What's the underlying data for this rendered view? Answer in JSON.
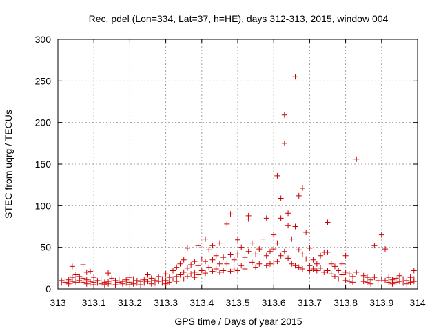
{
  "chart_data": {
    "type": "scatter",
    "title": "Rec. pdel (Lon=334, Lat=37, h=HE), days 312-313, 2015, window 004",
    "xlabel": "GPS time / Days of year 2015",
    "ylabel": "STEC from uqrg / TECUs",
    "xlim": [
      313,
      314
    ],
    "ylim": [
      0,
      300
    ],
    "x_ticks": [
      313,
      313.1,
      313.2,
      313.3,
      313.4,
      313.5,
      313.6,
      313.7,
      313.8,
      313.9,
      314
    ],
    "x_tick_labels": [
      "313",
      "313.1",
      "313.2",
      "313.3",
      "313.4",
      "313.5",
      "313.6",
      "313.7",
      "313.8",
      "313.9",
      "314"
    ],
    "y_ticks": [
      0,
      50,
      100,
      150,
      200,
      250,
      300
    ],
    "y_tick_labels": [
      "0",
      "50",
      "100",
      "150",
      "200",
      "250",
      "300"
    ],
    "grid": true,
    "marker": "+",
    "color": "#cc0000",
    "series": [
      {
        "name": "STEC",
        "points": [
          [
            313.01,
            10
          ],
          [
            313.01,
            7
          ],
          [
            313.02,
            12
          ],
          [
            313.02,
            8
          ],
          [
            313.03,
            11
          ],
          [
            313.03,
            6
          ],
          [
            313.04,
            27
          ],
          [
            313.04,
            14
          ],
          [
            313.04,
            9
          ],
          [
            313.05,
            17
          ],
          [
            313.05,
            12
          ],
          [
            313.05,
            8
          ],
          [
            313.06,
            15
          ],
          [
            313.06,
            10
          ],
          [
            313.07,
            29
          ],
          [
            313.07,
            13
          ],
          [
            313.07,
            8
          ],
          [
            313.08,
            20
          ],
          [
            313.08,
            11
          ],
          [
            313.08,
            6
          ],
          [
            313.09,
            21
          ],
          [
            313.09,
            9
          ],
          [
            313.09,
            7
          ],
          [
            313.1,
            14
          ],
          [
            313.1,
            8
          ],
          [
            313.1,
            5
          ],
          [
            313.11,
            10
          ],
          [
            313.11,
            7
          ],
          [
            313.12,
            12
          ],
          [
            313.12,
            6
          ],
          [
            313.13,
            8
          ],
          [
            313.13,
            5
          ],
          [
            313.14,
            19
          ],
          [
            313.14,
            9
          ],
          [
            313.14,
            6
          ],
          [
            313.15,
            13
          ],
          [
            313.15,
            7
          ],
          [
            313.16,
            10
          ],
          [
            313.16,
            5
          ],
          [
            313.17,
            12
          ],
          [
            313.17,
            8
          ],
          [
            313.18,
            9
          ],
          [
            313.18,
            6
          ],
          [
            313.19,
            11
          ],
          [
            313.19,
            7
          ],
          [
            313.2,
            14
          ],
          [
            313.2,
            8
          ],
          [
            313.2,
            5
          ],
          [
            313.21,
            12
          ],
          [
            313.21,
            6
          ],
          [
            313.22,
            10
          ],
          [
            313.22,
            7
          ],
          [
            313.23,
            9
          ],
          [
            313.23,
            5
          ],
          [
            313.24,
            11
          ],
          [
            313.24,
            7
          ],
          [
            313.25,
            17
          ],
          [
            313.25,
            9
          ],
          [
            313.26,
            13
          ],
          [
            313.26,
            6
          ],
          [
            313.27,
            10
          ],
          [
            313.27,
            7
          ],
          [
            313.28,
            15
          ],
          [
            313.28,
            9
          ],
          [
            313.29,
            12
          ],
          [
            313.29,
            7
          ],
          [
            313.3,
            18
          ],
          [
            313.3,
            10
          ],
          [
            313.3,
            6
          ],
          [
            313.31,
            14
          ],
          [
            313.31,
            8
          ],
          [
            313.32,
            22
          ],
          [
            313.32,
            12
          ],
          [
            313.33,
            26
          ],
          [
            313.33,
            15
          ],
          [
            313.33,
            9
          ],
          [
            313.34,
            30
          ],
          [
            313.34,
            17
          ],
          [
            313.35,
            35
          ],
          [
            313.35,
            20
          ],
          [
            313.35,
            12
          ],
          [
            313.36,
            49
          ],
          [
            313.36,
            25
          ],
          [
            313.36,
            15
          ],
          [
            313.37,
            29
          ],
          [
            313.37,
            18
          ],
          [
            313.38,
            33
          ],
          [
            313.38,
            20
          ],
          [
            313.38,
            14
          ],
          [
            313.39,
            52
          ],
          [
            313.39,
            28
          ],
          [
            313.39,
            17
          ],
          [
            313.4,
            36
          ],
          [
            313.4,
            22
          ],
          [
            313.41,
            60
          ],
          [
            313.41,
            33
          ],
          [
            313.41,
            19
          ],
          [
            313.42,
            47
          ],
          [
            313.42,
            26
          ],
          [
            313.43,
            52
          ],
          [
            313.43,
            35
          ],
          [
            313.43,
            21
          ],
          [
            313.44,
            40
          ],
          [
            313.44,
            24
          ],
          [
            313.45,
            55
          ],
          [
            313.45,
            30
          ],
          [
            313.45,
            20
          ],
          [
            313.46,
            38
          ],
          [
            313.46,
            22
          ],
          [
            313.47,
            78
          ],
          [
            313.47,
            30
          ],
          [
            313.48,
            90
          ],
          [
            313.48,
            41
          ],
          [
            313.48,
            21
          ],
          [
            313.49,
            35
          ],
          [
            313.49,
            23
          ],
          [
            313.5,
            59
          ],
          [
            313.5,
            42
          ],
          [
            313.5,
            22
          ],
          [
            313.51,
            50
          ],
          [
            313.51,
            28
          ],
          [
            313.52,
            38
          ],
          [
            313.52,
            24
          ],
          [
            313.53,
            88
          ],
          [
            313.53,
            84
          ],
          [
            313.53,
            45
          ],
          [
            313.54,
            55
          ],
          [
            313.54,
            32
          ],
          [
            313.55,
            42
          ],
          [
            313.55,
            26
          ],
          [
            313.56,
            48
          ],
          [
            313.56,
            30
          ],
          [
            313.57,
            60
          ],
          [
            313.57,
            36
          ],
          [
            313.58,
            85
          ],
          [
            313.58,
            40
          ],
          [
            313.58,
            28
          ],
          [
            313.59,
            45
          ],
          [
            313.59,
            30
          ],
          [
            313.6,
            65
          ],
          [
            313.6,
            48
          ],
          [
            313.6,
            31
          ],
          [
            313.61,
            136
          ],
          [
            313.61,
            55
          ],
          [
            313.61,
            33
          ],
          [
            313.62,
            109
          ],
          [
            313.62,
            85
          ],
          [
            313.62,
            40
          ],
          [
            313.63,
            209
          ],
          [
            313.63,
            175
          ],
          [
            313.63,
            45
          ],
          [
            313.64,
            91
          ],
          [
            313.64,
            76
          ],
          [
            313.64,
            37
          ],
          [
            313.65,
            60
          ],
          [
            313.65,
            30
          ],
          [
            313.66,
            255
          ],
          [
            313.66,
            75
          ],
          [
            313.66,
            28
          ],
          [
            313.67,
            112
          ],
          [
            313.67,
            47
          ],
          [
            313.67,
            26
          ],
          [
            313.68,
            121
          ],
          [
            313.68,
            42
          ],
          [
            313.68,
            24
          ],
          [
            313.69,
            68
          ],
          [
            313.69,
            36
          ],
          [
            313.7,
            49
          ],
          [
            313.7,
            28
          ],
          [
            313.7,
            22
          ],
          [
            313.71,
            35
          ],
          [
            313.71,
            24
          ],
          [
            313.72,
            30
          ],
          [
            313.72,
            22
          ],
          [
            313.73,
            40
          ],
          [
            313.73,
            25
          ],
          [
            313.74,
            44
          ],
          [
            313.74,
            20
          ],
          [
            313.75,
            80
          ],
          [
            313.75,
            44
          ],
          [
            313.75,
            22
          ],
          [
            313.76,
            30
          ],
          [
            313.76,
            18
          ],
          [
            313.77,
            27
          ],
          [
            313.77,
            15
          ],
          [
            313.78,
            22
          ],
          [
            313.78,
            12
          ],
          [
            313.79,
            30
          ],
          [
            313.79,
            17
          ],
          [
            313.8,
            40
          ],
          [
            313.8,
            20
          ],
          [
            313.8,
            10
          ],
          [
            313.81,
            18
          ],
          [
            313.81,
            9
          ],
          [
            313.82,
            15
          ],
          [
            313.82,
            8
          ],
          [
            313.83,
            156
          ],
          [
            313.83,
            20
          ],
          [
            313.84,
            12
          ],
          [
            313.84,
            7
          ],
          [
            313.85,
            16
          ],
          [
            313.85,
            9
          ],
          [
            313.86,
            14
          ],
          [
            313.86,
            8
          ],
          [
            313.87,
            11
          ],
          [
            313.87,
            6
          ],
          [
            313.88,
            52
          ],
          [
            313.88,
            14
          ],
          [
            313.89,
            10
          ],
          [
            313.89,
            7
          ],
          [
            313.9,
            65
          ],
          [
            313.9,
            12
          ],
          [
            313.91,
            48
          ],
          [
            313.91,
            10
          ],
          [
            313.92,
            14
          ],
          [
            313.92,
            8
          ],
          [
            313.93,
            11
          ],
          [
            313.93,
            6
          ],
          [
            313.94,
            13
          ],
          [
            313.94,
            8
          ],
          [
            313.95,
            16
          ],
          [
            313.95,
            9
          ],
          [
            313.96,
            12
          ],
          [
            313.96,
            7
          ],
          [
            313.97,
            10
          ],
          [
            313.97,
            6
          ],
          [
            313.98,
            14
          ],
          [
            313.98,
            8
          ],
          [
            313.99,
            22
          ],
          [
            313.99,
            12
          ],
          [
            313.99,
            9
          ]
        ]
      }
    ]
  }
}
